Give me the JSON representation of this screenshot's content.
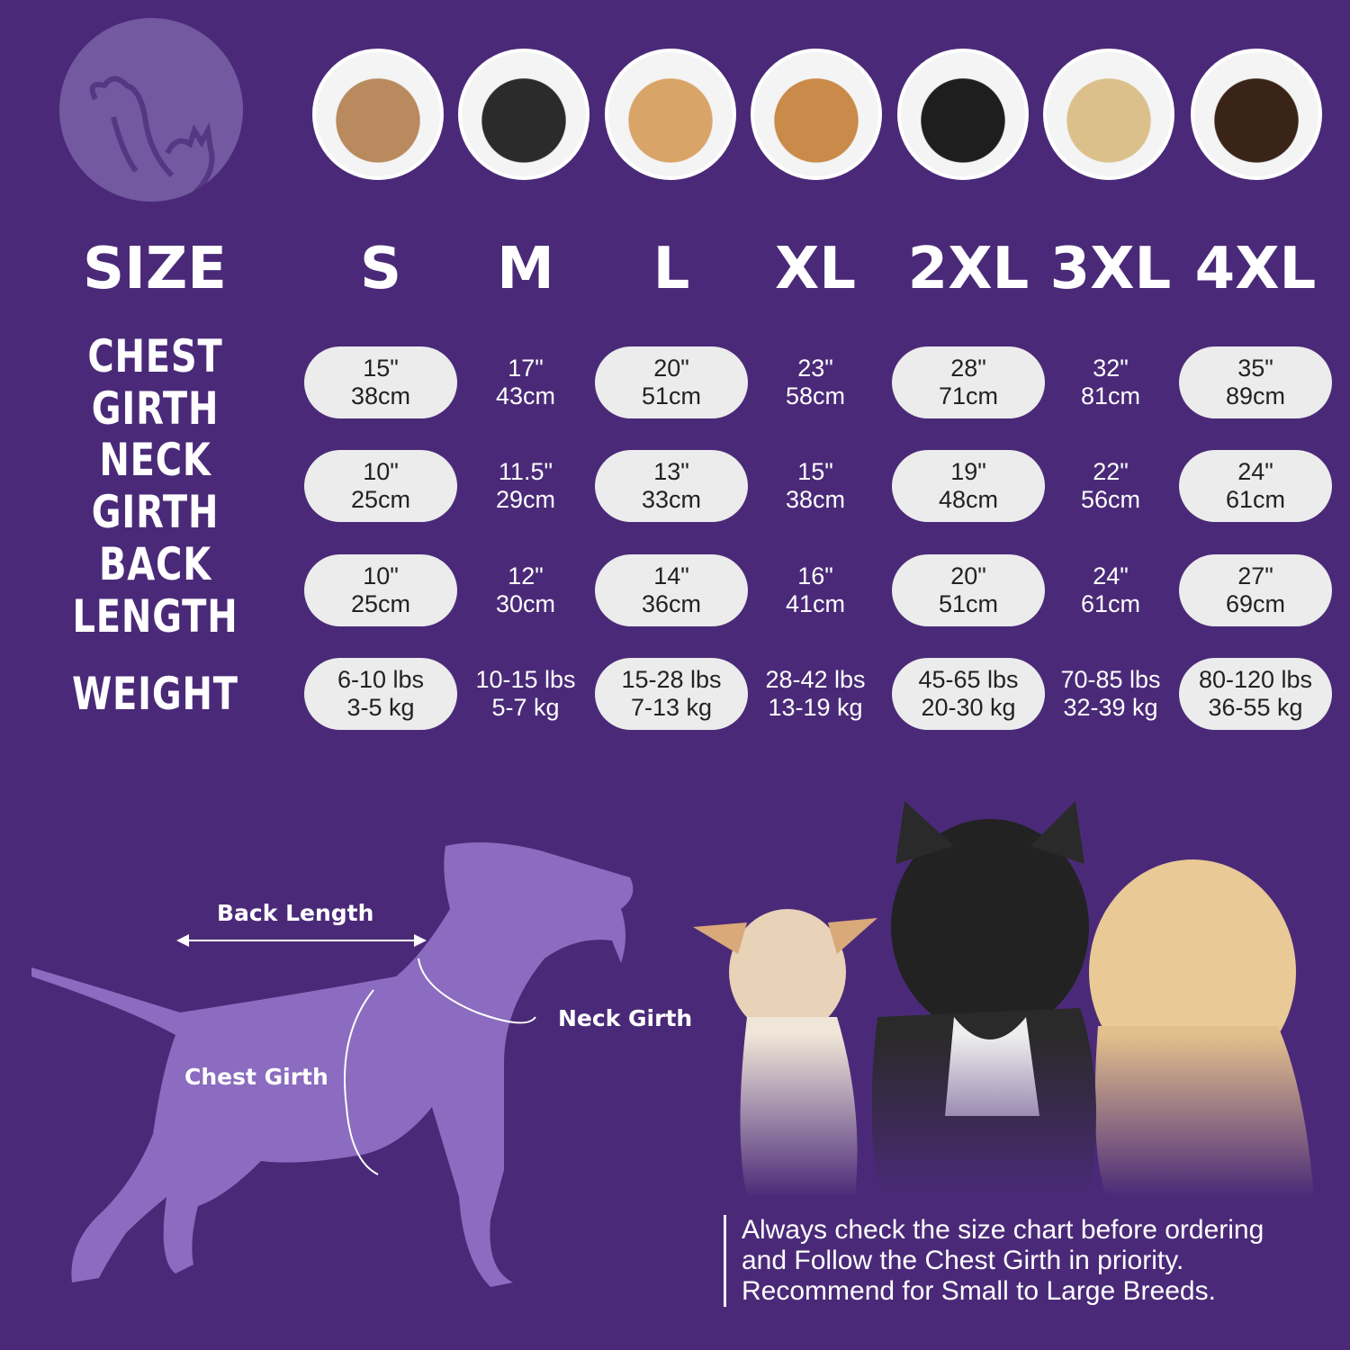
{
  "colors": {
    "background": "#4a2a78",
    "pill": "#ececec",
    "silhouette": "#8b6cc0"
  },
  "photos": [
    "shih-tzu",
    "boston-terrier",
    "cocker-spaniel",
    "beagle",
    "border-collie",
    "labrador",
    "doberman"
  ],
  "header": {
    "size_label": "SIZE",
    "sizes": [
      "S",
      "M",
      "L",
      "XL",
      "2XL",
      "3XL",
      "4XL"
    ]
  },
  "rows": [
    {
      "label": "CHEST GIRTH",
      "values": [
        [
          "15\"",
          "38cm"
        ],
        [
          "17\"",
          "43cm"
        ],
        [
          "20\"",
          "51cm"
        ],
        [
          "23\"",
          "58cm"
        ],
        [
          "28\"",
          "71cm"
        ],
        [
          "32\"",
          "81cm"
        ],
        [
          "35\"",
          "89cm"
        ]
      ]
    },
    {
      "label": "NECK GIRTH",
      "values": [
        [
          "10\"",
          "25cm"
        ],
        [
          "11.5\"",
          "29cm"
        ],
        [
          "13\"",
          "33cm"
        ],
        [
          "15\"",
          "38cm"
        ],
        [
          "19\"",
          "48cm"
        ],
        [
          "22\"",
          "56cm"
        ],
        [
          "24\"",
          "61cm"
        ]
      ]
    },
    {
      "label": "BACK LENGTH",
      "values": [
        [
          "10\"",
          "25cm"
        ],
        [
          "12\"",
          "30cm"
        ],
        [
          "14\"",
          "36cm"
        ],
        [
          "16\"",
          "41cm"
        ],
        [
          "20\"",
          "51cm"
        ],
        [
          "24\"",
          "61cm"
        ],
        [
          "27\"",
          "69cm"
        ]
      ]
    },
    {
      "label": "WEIGHT",
      "values": [
        [
          "6-10 lbs",
          "3-5 kg"
        ],
        [
          "10-15 lbs",
          "5-7 kg"
        ],
        [
          "15-28 lbs",
          "7-13 kg"
        ],
        [
          "28-42 lbs",
          "13-19 kg"
        ],
        [
          "45-65 lbs",
          "20-30 kg"
        ],
        [
          "70-85 lbs",
          "32-39 kg"
        ],
        [
          "80-120 lbs",
          "36-55 kg"
        ]
      ]
    }
  ],
  "diagram": {
    "back_length": "Back Length",
    "neck_girth": "Neck Girth",
    "chest_girth": "Chest Girth"
  },
  "note": {
    "lines": [
      "Always check the size chart before ordering",
      "and Follow the Chest Girth in priority.",
      "Recommend for Small to Large Breeds."
    ]
  }
}
